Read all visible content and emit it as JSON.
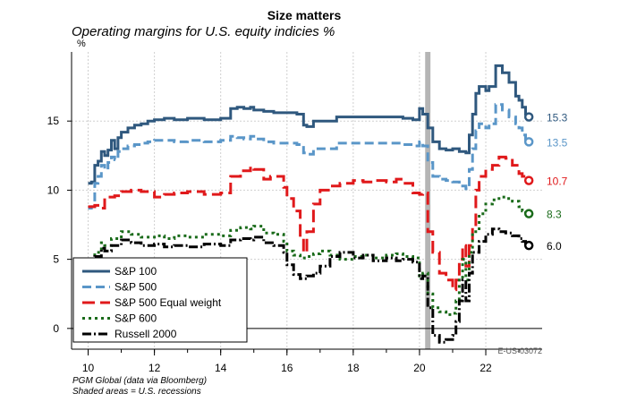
{
  "chart_data": {
    "type": "line",
    "title": "Size matters",
    "subtitle": "Operating margins for U.S. equity indicies %",
    "yunit": "%",
    "xlim": [
      2009.5,
      2023.7
    ],
    "ylim": [
      -1.5,
      20
    ],
    "yticks": [
      0,
      5,
      10,
      15
    ],
    "xticks": [
      {
        "value": 2010,
        "label": "10"
      },
      {
        "value": 2012,
        "label": "12"
      },
      {
        "value": 2014,
        "label": "14"
      },
      {
        "value": 2016,
        "label": "16"
      },
      {
        "value": 2018,
        "label": "18"
      },
      {
        "value": 2020,
        "label": "20"
      },
      {
        "value": 2022,
        "label": "22"
      }
    ],
    "grid": true,
    "recession": {
      "start": 2020.17,
      "end": 2020.33
    },
    "legend_position": "bottom-left",
    "series": [
      {
        "name": "S&P 100",
        "color": "#2f587e",
        "dash": "solid",
        "end_label": "15.3",
        "x": [
          2010.0,
          2010.1,
          2010.2,
          2010.3,
          2010.4,
          2010.5,
          2010.6,
          2010.7,
          2010.8,
          2010.9,
          2011.0,
          2011.2,
          2011.4,
          2011.6,
          2011.8,
          2012.0,
          2012.3,
          2012.6,
          2013.0,
          2013.5,
          2014.0,
          2014.3,
          2014.5,
          2014.7,
          2014.9,
          2015.0,
          2015.3,
          2015.6,
          2016.0,
          2016.3,
          2016.5,
          2016.6,
          2016.8,
          2017.0,
          2017.5,
          2018.0,
          2018.5,
          2019.0,
          2019.5,
          2019.8,
          2020.0,
          2020.1,
          2020.25,
          2020.4,
          2020.6,
          2020.8,
          2021.0,
          2021.2,
          2021.4,
          2021.5,
          2021.6,
          2021.7,
          2021.8,
          2022.0,
          2022.1,
          2022.3,
          2022.5,
          2022.7,
          2022.9,
          2023.0,
          2023.1,
          2023.2,
          2023.3
        ],
        "y": [
          10.5,
          10.6,
          11.8,
          12.1,
          12.8,
          12.5,
          12.9,
          13.6,
          13.0,
          13.8,
          14.2,
          14.5,
          14.7,
          14.8,
          15.0,
          15.1,
          15.2,
          15.1,
          15.2,
          15.1,
          15.2,
          15.9,
          16.0,
          15.9,
          16.0,
          15.8,
          15.7,
          15.6,
          15.6,
          15.5,
          14.7,
          14.6,
          15.0,
          15.0,
          15.3,
          15.3,
          15.3,
          15.3,
          15.2,
          15.1,
          15.9,
          15.5,
          14.5,
          13.5,
          13.0,
          12.9,
          13.0,
          12.8,
          12.7,
          14.0,
          15.5,
          17.0,
          17.5,
          17.2,
          17.5,
          19.0,
          18.5,
          17.8,
          16.8,
          16.5,
          16.0,
          15.5,
          15.3
        ]
      },
      {
        "name": "S&P 500",
        "color": "#5a96c8",
        "dash": "10,5",
        "end_label": "13.5",
        "x": [
          2010.0,
          2010.1,
          2010.2,
          2010.3,
          2010.4,
          2010.5,
          2010.6,
          2010.7,
          2010.8,
          2010.9,
          2011.0,
          2011.2,
          2011.4,
          2011.6,
          2011.8,
          2012.0,
          2012.3,
          2012.6,
          2013.0,
          2013.5,
          2014.0,
          2014.3,
          2014.5,
          2014.7,
          2014.9,
          2015.0,
          2015.3,
          2015.6,
          2016.0,
          2016.3,
          2016.5,
          2016.6,
          2016.8,
          2017.0,
          2017.5,
          2018.0,
          2018.5,
          2019.0,
          2019.5,
          2019.8,
          2020.0,
          2020.1,
          2020.25,
          2020.4,
          2020.6,
          2020.8,
          2021.0,
          2021.2,
          2021.4,
          2021.5,
          2021.6,
          2021.7,
          2021.8,
          2022.0,
          2022.1,
          2022.3,
          2022.5,
          2022.7,
          2022.9,
          2023.0,
          2023.1,
          2023.2,
          2023.3
        ],
        "y": [
          8.7,
          8.8,
          10.5,
          11.0,
          11.8,
          11.5,
          12.0,
          12.4,
          12.2,
          12.8,
          13.0,
          13.2,
          13.3,
          13.4,
          13.5,
          13.6,
          13.6,
          13.5,
          13.6,
          13.5,
          13.6,
          13.9,
          13.8,
          13.7,
          13.9,
          13.7,
          13.5,
          13.4,
          13.4,
          13.3,
          12.7,
          12.6,
          13.0,
          13.0,
          13.4,
          13.4,
          13.4,
          13.4,
          13.3,
          13.2,
          13.5,
          13.2,
          12.0,
          11.0,
          10.8,
          10.7,
          10.6,
          10.3,
          10.1,
          11.5,
          13.0,
          14.3,
          14.8,
          14.5,
          14.8,
          16.2,
          15.8,
          15.3,
          14.8,
          14.5,
          14.0,
          13.7,
          13.5
        ]
      },
      {
        "name": "S&P 500 Equal weight",
        "color": "#e0191b",
        "dash": "14,6",
        "end_label": "10.7",
        "x": [
          2010.0,
          2010.2,
          2010.4,
          2010.5,
          2010.8,
          2011.0,
          2011.3,
          2011.6,
          2012.0,
          2012.3,
          2012.6,
          2013.0,
          2013.5,
          2014.0,
          2014.3,
          2014.6,
          2014.9,
          2015.0,
          2015.3,
          2015.5,
          2015.7,
          2015.9,
          2016.0,
          2016.2,
          2016.4,
          2016.5,
          2016.6,
          2016.8,
          2017.0,
          2017.3,
          2017.6,
          2018.0,
          2018.3,
          2018.6,
          2019.0,
          2019.3,
          2019.5,
          2019.8,
          2020.0,
          2020.1,
          2020.25,
          2020.4,
          2020.6,
          2020.8,
          2021.0,
          2021.1,
          2021.2,
          2021.3,
          2021.4,
          2021.5,
          2021.6,
          2021.7,
          2021.8,
          2022.0,
          2022.2,
          2022.4,
          2022.6,
          2022.8,
          2023.0,
          2023.1,
          2023.2,
          2023.3
        ],
        "y": [
          8.8,
          8.9,
          8.7,
          9.5,
          9.6,
          9.9,
          10.0,
          9.9,
          9.5,
          9.7,
          9.8,
          9.9,
          9.7,
          9.8,
          11.0,
          11.4,
          11.7,
          11.5,
          10.8,
          11.0,
          11.0,
          10.2,
          9.4,
          8.5,
          6.5,
          5.5,
          7.0,
          9.0,
          10.0,
          10.3,
          10.5,
          10.7,
          10.6,
          10.7,
          10.6,
          10.8,
          10.5,
          9.8,
          9.7,
          9.8,
          7.0,
          5.5,
          4.0,
          3.5,
          2.8,
          3.5,
          5.0,
          6.0,
          4.5,
          6.0,
          7.5,
          10.0,
          11.0,
          11.5,
          11.8,
          12.4,
          12.3,
          11.8,
          11.2,
          11.0,
          10.9,
          10.7
        ]
      },
      {
        "name": "S&P 600",
        "color": "#1a6b1a",
        "dash": "3,4",
        "end_label": "8.3",
        "x": [
          2010.0,
          2010.2,
          2010.4,
          2010.5,
          2010.7,
          2011.0,
          2011.3,
          2011.6,
          2012.0,
          2012.3,
          2012.6,
          2013.0,
          2013.5,
          2014.0,
          2014.3,
          2014.6,
          2014.9,
          2015.0,
          2015.3,
          2015.6,
          2015.9,
          2016.0,
          2016.2,
          2016.4,
          2016.6,
          2016.8,
          2017.0,
          2017.3,
          2017.6,
          2018.0,
          2018.3,
          2018.6,
          2019.0,
          2019.3,
          2019.5,
          2019.8,
          2020.0,
          2020.1,
          2020.25,
          2020.4,
          2020.6,
          2020.8,
          2021.0,
          2021.1,
          2021.2,
          2021.3,
          2021.4,
          2021.5,
          2021.6,
          2021.8,
          2022.0,
          2022.2,
          2022.4,
          2022.6,
          2022.8,
          2023.0,
          2023.1,
          2023.2,
          2023.3
        ],
        "y": [
          4.8,
          5.5,
          6.2,
          6.0,
          6.5,
          7.0,
          6.8,
          6.6,
          6.7,
          6.5,
          6.7,
          6.6,
          6.8,
          6.7,
          7.1,
          7.3,
          7.2,
          7.4,
          6.9,
          6.8,
          6.3,
          5.6,
          5.3,
          5.1,
          5.2,
          5.4,
          5.6,
          5.3,
          5.0,
          5.2,
          5.3,
          5.1,
          5.3,
          5.4,
          5.2,
          5.1,
          3.8,
          4.0,
          2.5,
          1.5,
          1.2,
          1.0,
          1.1,
          2.0,
          3.5,
          5.0,
          3.5,
          5.5,
          7.0,
          8.3,
          9.0,
          9.3,
          9.5,
          9.4,
          9.2,
          8.8,
          8.5,
          8.4,
          8.3
        ]
      },
      {
        "name": "Russell 2000",
        "color": "#000000",
        "dash": "10,3,2,3",
        "end_label": "6.0",
        "x": [
          2010.0,
          2010.2,
          2010.4,
          2010.5,
          2010.7,
          2011.0,
          2011.3,
          2011.6,
          2012.0,
          2012.3,
          2012.6,
          2013.0,
          2013.5,
          2014.0,
          2014.3,
          2014.6,
          2014.9,
          2015.0,
          2015.3,
          2015.6,
          2015.9,
          2016.0,
          2016.2,
          2016.4,
          2016.6,
          2016.8,
          2017.0,
          2017.3,
          2017.6,
          2018.0,
          2018.3,
          2018.6,
          2019.0,
          2019.3,
          2019.5,
          2019.8,
          2020.0,
          2020.1,
          2020.25,
          2020.4,
          2020.6,
          2020.8,
          2021.0,
          2021.1,
          2021.2,
          2021.3,
          2021.4,
          2021.5,
          2021.6,
          2021.8,
          2022.0,
          2022.2,
          2022.4,
          2022.6,
          2022.8,
          2023.0,
          2023.1,
          2023.2,
          2023.3
        ],
        "y": [
          4.5,
          5.2,
          5.8,
          5.6,
          6.0,
          6.4,
          6.2,
          6.0,
          6.1,
          5.9,
          6.0,
          5.9,
          6.1,
          6.0,
          6.4,
          6.5,
          6.4,
          6.6,
          6.2,
          6.0,
          5.5,
          4.6,
          3.9,
          3.6,
          3.8,
          4.0,
          4.5,
          5.2,
          5.5,
          5.1,
          5.3,
          4.9,
          5.1,
          4.9,
          5.0,
          4.8,
          3.6,
          3.8,
          1.5,
          -0.5,
          -1.0,
          -0.8,
          -0.5,
          0.5,
          2.0,
          3.5,
          2.0,
          4.0,
          5.5,
          6.3,
          6.8,
          7.2,
          7.0,
          6.9,
          6.7,
          6.5,
          6.3,
          6.1,
          6.0
        ]
      }
    ]
  },
  "source_lines": [
    "PGM Global (data via Bloomberg)",
    "Shaded areas = U.S. recessions"
  ],
  "chart_code": "E-US-03072"
}
